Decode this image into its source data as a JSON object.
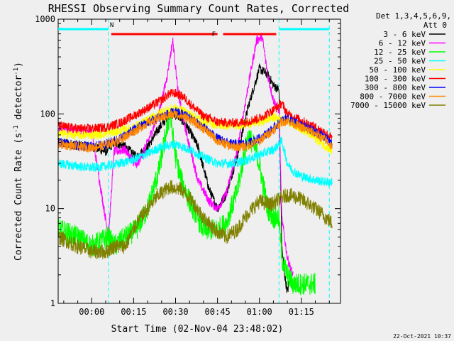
{
  "chart_data": {
    "type": "line",
    "title": "RHESSI Observing Summary Count Rates, Corrected",
    "xlabel": "Start Time (02-Nov-04 23:48:02)",
    "ylabel": "Corrected Count Rate (s^-1 detector^-1)",
    "ylabel_parts": {
      "base": "Corrected Count Rate (s",
      "exp1": "-1",
      "mid": " detector",
      "exp2": "-1",
      "end": ")"
    },
    "yscale": "log",
    "ylim": [
      1,
      1000
    ],
    "xlim_minutes": [
      -12,
      89
    ],
    "x_ticks": [
      {
        "t": 0,
        "label": "00:00"
      },
      {
        "t": 15,
        "label": "00:15"
      },
      {
        "t": 30,
        "label": "00:30"
      },
      {
        "t": 45,
        "label": "00:45"
      },
      {
        "t": 60,
        "label": "01:00"
      },
      {
        "t": 75,
        "label": "01:15"
      }
    ],
    "y_ticks": [
      {
        "v": 1,
        "label": "1"
      },
      {
        "v": 10,
        "label": "10"
      },
      {
        "v": 100,
        "label": "100"
      },
      {
        "v": 1000,
        "label": "1000"
      }
    ],
    "legend_header": [
      "Det 1,3,4,5,6,9,",
      "Att 0"
    ],
    "legend_position": "right",
    "footer": "22-Oct-2021 10:37",
    "night_boundaries": [
      6,
      67,
      85
    ],
    "flags": [
      {
        "label": "N",
        "color": "#00ffff",
        "ranges": [
          [
            -12,
            6
          ],
          [
            67,
            85
          ]
        ]
      },
      {
        "label": "F",
        "color": "#ff0000",
        "ranges": [
          [
            7,
            45
          ],
          [
            47,
            66
          ]
        ]
      }
    ],
    "series": [
      {
        "name": "3 - 6 keV",
        "color": "#000000",
        "x": [
          -12,
          0,
          5,
          8,
          12,
          16,
          20,
          24,
          28,
          31,
          34,
          38,
          42,
          45,
          48,
          52,
          56,
          60,
          63,
          65,
          67,
          68,
          69,
          70,
          71,
          72
        ],
        "y": [
          50,
          45,
          40,
          50,
          45,
          35,
          45,
          70,
          100,
          95,
          75,
          45,
          16,
          10,
          14,
          35,
          120,
          300,
          260,
          200,
          180,
          4,
          2,
          1.3,
          2,
          1.5
        ]
      },
      {
        "name": "6 - 12 keV",
        "color": "#ff00ff",
        "x": [
          -12,
          0,
          6,
          8,
          12,
          16,
          20,
          24,
          27,
          29,
          31,
          34,
          38,
          42,
          45,
          48,
          52,
          56,
          59,
          61,
          63,
          65,
          67,
          68,
          70,
          72
        ],
        "y": [
          70,
          65,
          5,
          40,
          42,
          28,
          50,
          100,
          250,
          600,
          160,
          60,
          20,
          12,
          10,
          14,
          40,
          200,
          600,
          650,
          250,
          140,
          110,
          8,
          3,
          2
        ]
      },
      {
        "name": "12 - 25 keV",
        "color": "#00ff00",
        "x": [
          -12,
          -5,
          0,
          6,
          8,
          12,
          16,
          20,
          24,
          28,
          30,
          32,
          35,
          40,
          45,
          48,
          52,
          56,
          59,
          61,
          63,
          65,
          67,
          68,
          70,
          72,
          80
        ],
        "y": [
          6,
          5,
          4,
          5,
          4,
          5,
          6,
          10,
          25,
          100,
          35,
          20,
          12,
          6,
          6,
          7,
          15,
          60,
          40,
          20,
          10,
          8,
          8,
          3,
          2,
          1.6,
          1.6
        ]
      },
      {
        "name": "25 - 50 keV",
        "color": "#00ffff",
        "x": [
          -12,
          -5,
          0,
          5,
          10,
          15,
          20,
          25,
          30,
          35,
          40,
          45,
          50,
          55,
          60,
          65,
          67,
          68,
          70,
          72,
          75,
          80,
          84,
          86
        ],
        "y": [
          30,
          28,
          27,
          28,
          30,
          33,
          38,
          45,
          48,
          42,
          35,
          30,
          30,
          32,
          37,
          42,
          48,
          52,
          30,
          25,
          22,
          20,
          19,
          19
        ]
      },
      {
        "name": "50 - 100 keV",
        "color": "#ffff00",
        "x": [
          -12,
          -5,
          0,
          5,
          10,
          15,
          20,
          25,
          30,
          35,
          40,
          45,
          50,
          55,
          60,
          65,
          70,
          75,
          80,
          84,
          86
        ],
        "y": [
          62,
          60,
          60,
          62,
          66,
          72,
          85,
          105,
          115,
          100,
          85,
          76,
          75,
          78,
          82,
          92,
          85,
          70,
          55,
          45,
          40
        ]
      },
      {
        "name": "100 - 300 keV",
        "color": "#ff0000",
        "x": [
          -12,
          -5,
          0,
          5,
          10,
          15,
          20,
          25,
          28,
          30,
          33,
          36,
          40,
          45,
          50,
          55,
          60,
          65,
          68,
          70,
          75,
          80,
          84,
          86
        ],
        "y": [
          75,
          70,
          70,
          72,
          80,
          95,
          115,
          140,
          165,
          165,
          150,
          120,
          95,
          82,
          80,
          82,
          90,
          110,
          130,
          100,
          85,
          72,
          62,
          55
        ]
      },
      {
        "name": "300 - 800 keV",
        "color": "#0000ff",
        "x": [
          -12,
          -5,
          0,
          5,
          10,
          15,
          20,
          25,
          30,
          35,
          40,
          45,
          50,
          55,
          60,
          65,
          68,
          70,
          75,
          80,
          84,
          86
        ],
        "y": [
          50,
          46,
          45,
          48,
          55,
          68,
          82,
          95,
          105,
          92,
          72,
          55,
          48,
          48,
          55,
          70,
          85,
          90,
          75,
          65,
          55,
          48
        ]
      },
      {
        "name": "800 - 7000 keV",
        "color": "#ff8800",
        "x": [
          -12,
          -5,
          0,
          5,
          10,
          15,
          20,
          25,
          30,
          35,
          40,
          45,
          50,
          55,
          60,
          65,
          68,
          70,
          75,
          80,
          84,
          86
        ],
        "y": [
          48,
          45,
          44,
          47,
          53,
          65,
          80,
          92,
          100,
          88,
          70,
          52,
          45,
          45,
          52,
          68,
          82,
          85,
          72,
          62,
          52,
          45
        ]
      },
      {
        "name": "7000 - 15000 keV",
        "color": "#808000",
        "x": [
          -12,
          -5,
          0,
          5,
          8,
          12,
          16,
          20,
          24,
          28,
          32,
          36,
          40,
          44,
          48,
          52,
          56,
          60,
          64,
          68,
          70,
          74,
          78,
          82,
          86
        ],
        "y": [
          5,
          4,
          3.5,
          3.5,
          4,
          4,
          7,
          10,
          14,
          17,
          16,
          12,
          8,
          6,
          5,
          6,
          9,
          12,
          11,
          13,
          14,
          13,
          11,
          9,
          7
        ]
      }
    ]
  }
}
